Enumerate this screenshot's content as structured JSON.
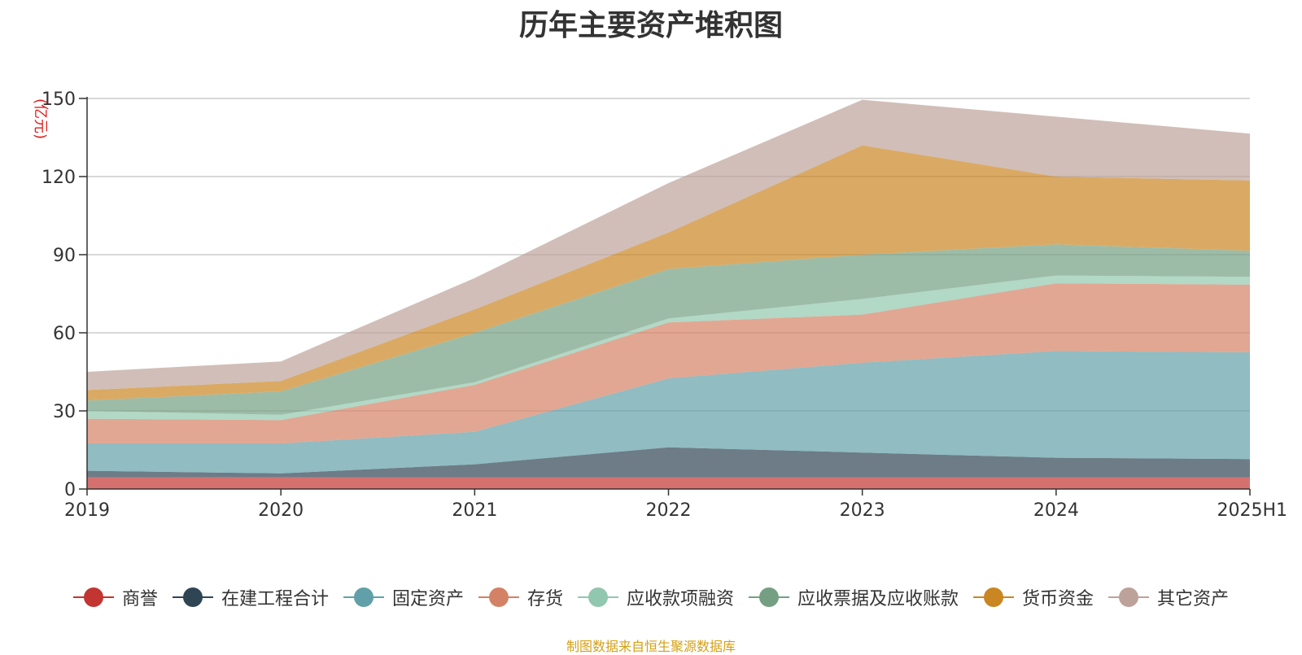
{
  "chart_data": {
    "type": "area",
    "stacked": true,
    "title": "历年主要资产堆积图",
    "ylabel": "(亿元)",
    "ylim": [
      0,
      150
    ],
    "yticks": [
      0,
      30,
      60,
      90,
      120,
      150
    ],
    "grid": true,
    "legend_position": "bottom",
    "x": [
      "2019",
      "2020",
      "2021",
      "2022",
      "2023",
      "2024",
      "2025H1"
    ],
    "series": [
      {
        "name": "商誉",
        "color": "#c23531",
        "values": [
          4.5,
          4.5,
          4.5,
          4.5,
          4.5,
          4.5,
          4.5
        ]
      },
      {
        "name": "在建工程合计",
        "color": "#2f4554",
        "values": [
          2.5,
          1.5,
          5,
          11.5,
          9.5,
          7.5,
          7
        ]
      },
      {
        "name": "固定资产",
        "color": "#61a0a8",
        "values": [
          10.5,
          11.5,
          12.5,
          26.5,
          34.5,
          41,
          41
        ]
      },
      {
        "name": "存货",
        "color": "#d48265",
        "values": [
          9.5,
          9,
          18,
          21.5,
          18.5,
          26,
          26
        ]
      },
      {
        "name": "应收款项融资",
        "color": "#91c7ae",
        "values": [
          3,
          2,
          1,
          1.5,
          6,
          3,
          3
        ]
      },
      {
        "name": "应收票据及应收账款",
        "color": "#749f83",
        "values": [
          4,
          9,
          19,
          19,
          17,
          12,
          10
        ]
      },
      {
        "name": "货币资金",
        "color": "#ca8622",
        "values": [
          4,
          4,
          9,
          14,
          42,
          26,
          27
        ]
      },
      {
        "name": "其它资产",
        "color": "#bda29a",
        "values": [
          7,
          7.5,
          12,
          19,
          17.5,
          23,
          18
        ]
      }
    ]
  },
  "source_note": "制图数据来自恒生聚源数据库"
}
